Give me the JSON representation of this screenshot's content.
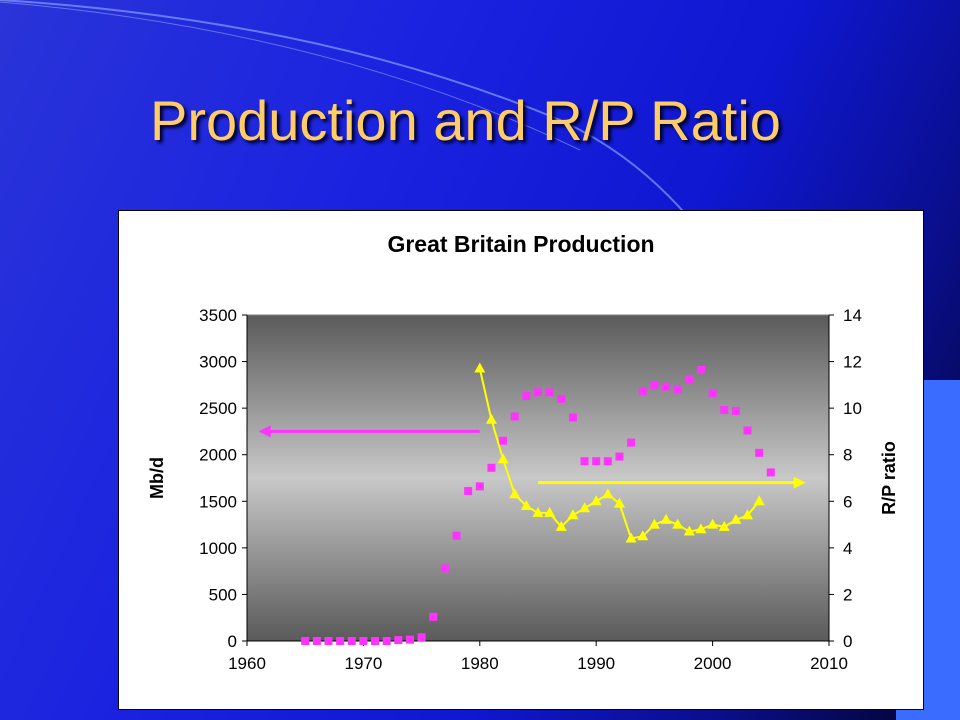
{
  "slide": {
    "title": "Production and R/P Ratio"
  },
  "chart_data": {
    "type": "scatter",
    "title": "Great Britain Production",
    "xlabel": "",
    "ylabel": "Mb/d",
    "y2label": "R/P ratio",
    "xlim": [
      1960,
      2010
    ],
    "ylim": [
      0,
      3500
    ],
    "y2lim": [
      0,
      14
    ],
    "xticks": [
      1960,
      1970,
      1980,
      1990,
      2000,
      2010
    ],
    "yticks": [
      0,
      500,
      1000,
      1500,
      2000,
      2500,
      3000,
      3500
    ],
    "y2ticks": [
      0,
      2,
      4,
      6,
      8,
      10,
      12,
      14
    ],
    "grid": false,
    "series": [
      {
        "axis": "left",
        "marker": "square",
        "color": "#ff33ff",
        "x": [
          1965,
          1966,
          1967,
          1968,
          1969,
          1970,
          1971,
          1972,
          1973,
          1974,
          1975,
          1976,
          1977,
          1978,
          1979,
          1980,
          1981,
          1982,
          1983,
          1984,
          1985,
          1986,
          1987,
          1988,
          1989,
          1990,
          1991,
          1992,
          1993,
          1994,
          1995,
          1996,
          1997,
          1998,
          1999,
          2000,
          2001,
          2002,
          2003,
          2004,
          2005
        ],
        "y": [
          0,
          0,
          0,
          0,
          0,
          0,
          0,
          0,
          10,
          15,
          40,
          260,
          780,
          1130,
          1610,
          1660,
          1860,
          2150,
          2410,
          2630,
          2670,
          2670,
          2600,
          2400,
          1930,
          1930,
          1930,
          1980,
          2130,
          2680,
          2750,
          2730,
          2700,
          2810,
          2910,
          2660,
          2480,
          2470,
          2260,
          2020,
          1810
        ]
      },
      {
        "axis": "right",
        "marker": "triangle",
        "color": "#ffff00",
        "x": [
          1980,
          1981,
          1982,
          1983,
          1984,
          1985,
          1986,
          1987,
          1988,
          1989,
          1990,
          1991,
          1992,
          1993,
          1994,
          1995,
          1996,
          1997,
          1998,
          1999,
          2000,
          2001,
          2002,
          2003,
          2004
        ],
        "y": [
          11.7,
          9.5,
          7.8,
          6.3,
          5.8,
          5.5,
          5.5,
          4.9,
          5.4,
          5.7,
          6.0,
          6.3,
          5.9,
          4.4,
          4.5,
          5.0,
          5.2,
          5.0,
          4.7,
          4.8,
          5.0,
          4.9,
          5.2,
          5.4,
          6.0
        ]
      }
    ],
    "annotations": [
      {
        "type": "arrow",
        "direction": "left",
        "color": "#ff33ff",
        "from_x": 1980,
        "to_x": 1961,
        "y": 2250,
        "axis": "left"
      },
      {
        "type": "arrow",
        "direction": "right",
        "color": "#ffff00",
        "from_x": 1985,
        "to_x": 2008,
        "y": 6.8,
        "axis": "right"
      }
    ]
  }
}
